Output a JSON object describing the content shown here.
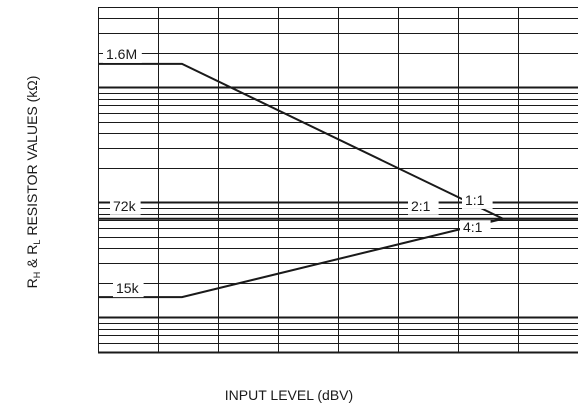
{
  "chart_data": {
    "type": "line",
    "xlabel": "INPUT LEVEL (dBV)",
    "ylabel": {
      "prefix": "R",
      "h_sub": "H",
      "amp": " & R",
      "l_sub": "L",
      "suffix": "  RESISTOR VALUES (kΩ)"
    },
    "x_divisions": 8,
    "y_scale": "log",
    "ylim_kohm": [
      5,
      5000
    ],
    "grid": true,
    "annotations": {
      "level_labels": [
        "1.6M",
        "72k",
        "15k"
      ],
      "ratio_labels": [
        "1:1",
        "2:1",
        "4:1"
      ]
    },
    "series": [
      {
        "name": "1.6M",
        "points": [
          [
            0,
            1600
          ],
          [
            1.4,
            1600
          ],
          [
            6.75,
            72
          ],
          [
            8,
            72
          ]
        ]
      },
      {
        "name": "15k",
        "points": [
          [
            0,
            15
          ],
          [
            1.4,
            15
          ],
          [
            6.75,
            72
          ],
          [
            8,
            72
          ]
        ]
      }
    ]
  },
  "colors": {
    "line": "#1a1a1a",
    "grid": "#1a1a1a",
    "background": "#ffffff"
  }
}
